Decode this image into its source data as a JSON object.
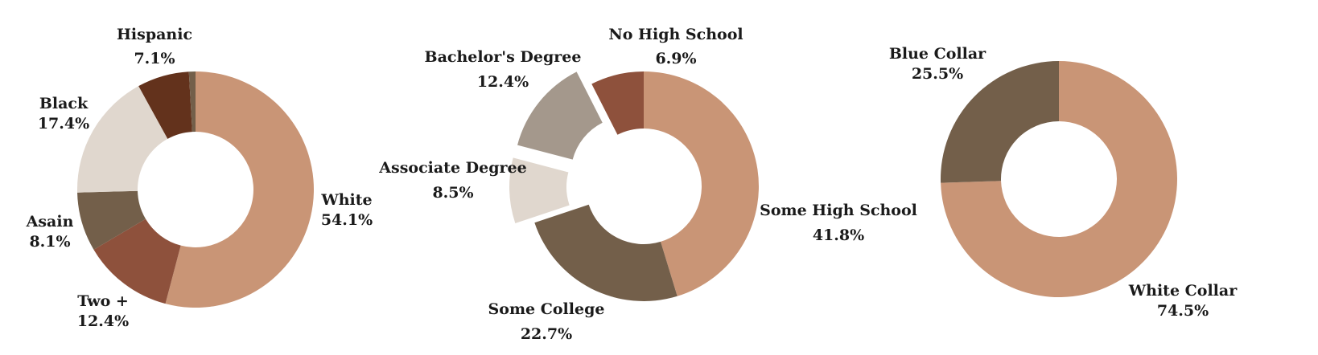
{
  "chart_data": [
    {
      "type": "pie",
      "donut": true,
      "slices": [
        {
          "label": "White",
          "value_text": "54.1%",
          "value": 54.1,
          "color": "#c99576"
        },
        {
          "label": "Two +",
          "value_text": "12.4%",
          "value": 12.4,
          "color": "#8e513c"
        },
        {
          "label": "Asain",
          "value_text": "8.1%",
          "value": 8.1,
          "color": "#735f4a"
        },
        {
          "label": "Black",
          "value_text": "17.4%",
          "value": 17.4,
          "color": "#e0d7ce"
        },
        {
          "label": "Hispanic",
          "value_text": "7.1%",
          "value": 7.1,
          "color": "#63321c"
        },
        {
          "label": "",
          "value_text": "",
          "value": 0.9,
          "color": "#735f4a"
        }
      ]
    },
    {
      "type": "pie",
      "donut": true,
      "slices": [
        {
          "label": "Some High School",
          "value_text": "41.8%",
          "value": 41.8,
          "color": "#c99576"
        },
        {
          "label": "Some College",
          "value_text": "22.7%",
          "value": 22.7,
          "color": "#735f4a"
        },
        {
          "label": "Associate Degree",
          "value_text": "8.5%",
          "value": 8.5,
          "color": "#e0d7ce",
          "exploded": true
        },
        {
          "label": "Bachelor's Degree",
          "value_text": "12.4%",
          "value": 12.4,
          "color": "#a4988c",
          "exploded": true
        },
        {
          "label": "No High School",
          "value_text": "6.9%",
          "value": 6.9,
          "color": "#8e513c"
        }
      ]
    },
    {
      "type": "pie",
      "donut": true,
      "slices": [
        {
          "label": "White Collar",
          "value_text": "74.5%",
          "value": 74.5,
          "color": "#c99576"
        },
        {
          "label": "Blue Collar",
          "value_text": "25.5%",
          "value": 25.5,
          "color": "#735f4a"
        }
      ]
    }
  ]
}
